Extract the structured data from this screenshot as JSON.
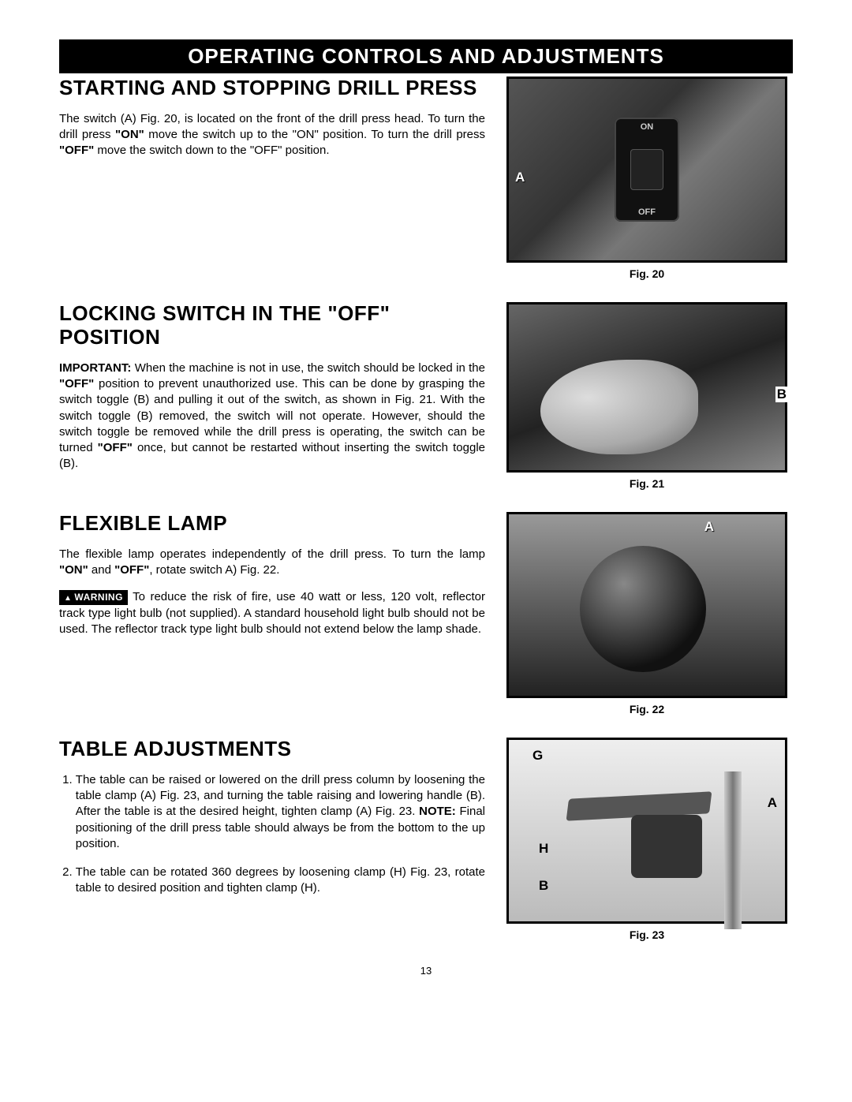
{
  "banner": "OPERATING CONTROLS AND ADJUSTMENTS",
  "page_number": "13",
  "sections": {
    "start_stop": {
      "heading": "STARTING AND STOPPING DRILL PRESS",
      "body_html": "The switch (A) Fig. 20, is located on the front of the drill press head. To turn the drill press <b>\"ON\"</b> move the switch up to the \"ON\" position. To turn the drill press <b>\"OFF\"</b> move the switch down to the \"OFF\" position.",
      "fig_caption": "Fig. 20",
      "labels": {
        "A": "A",
        "on": "ON",
        "off": "OFF"
      }
    },
    "lock_off": {
      "heading": "LOCKING SWITCH IN THE \"OFF\" POSITION",
      "body_html": "<b>IMPORTANT:</b> When the machine is not in use, the switch should be locked in the <b>\"OFF\"</b> position to prevent unauthorized use. This can be done by grasping the switch toggle (B) and pulling it out of the switch, as shown in Fig. 21. With the switch toggle (B) removed, the switch will not operate. However, should the switch toggle be removed while the drill press is operating, the switch can be turned <b>\"OFF\"</b> once, but cannot be restarted without inserting the switch toggle (B).",
      "fig_caption": "Fig. 21",
      "labels": {
        "B": "B"
      }
    },
    "lamp": {
      "heading": "FLEXIBLE LAMP",
      "body1_html": "The flexible lamp operates independently of the drill press. To turn the lamp <b>\"ON\"</b> and <b>\"OFF\"</b>, rotate switch A) Fig. 22.",
      "warning_label": "WARNING",
      "body2_html": "To reduce the risk of fire, use 40 watt or less, 120 volt, reflector track type light bulb (not supplied). A standard household light bulb should not be used. The reflector track type light bulb should not extend below the lamp shade.",
      "fig_caption": "Fig. 22",
      "labels": {
        "A": "A"
      }
    },
    "table": {
      "heading": "TABLE ADJUSTMENTS",
      "step1_html": "The table can be raised or lowered on the drill press column by loosening the table clamp (A) Fig. 23, and turning the table raising and lowering handle (B). After the table is at the desired height, tighten clamp (A) Fig. 23. <b>NOTE:</b> Final positioning of the drill press table should always be from the bottom to the up position.",
      "step2_html": "The table can be rotated 360 degrees by loosening clamp (H) Fig. 23, rotate table to desired position and tighten clamp (H).",
      "fig_caption": "Fig. 23",
      "labels": {
        "G": "G",
        "A": "A",
        "H": "H",
        "B": "B"
      }
    }
  }
}
